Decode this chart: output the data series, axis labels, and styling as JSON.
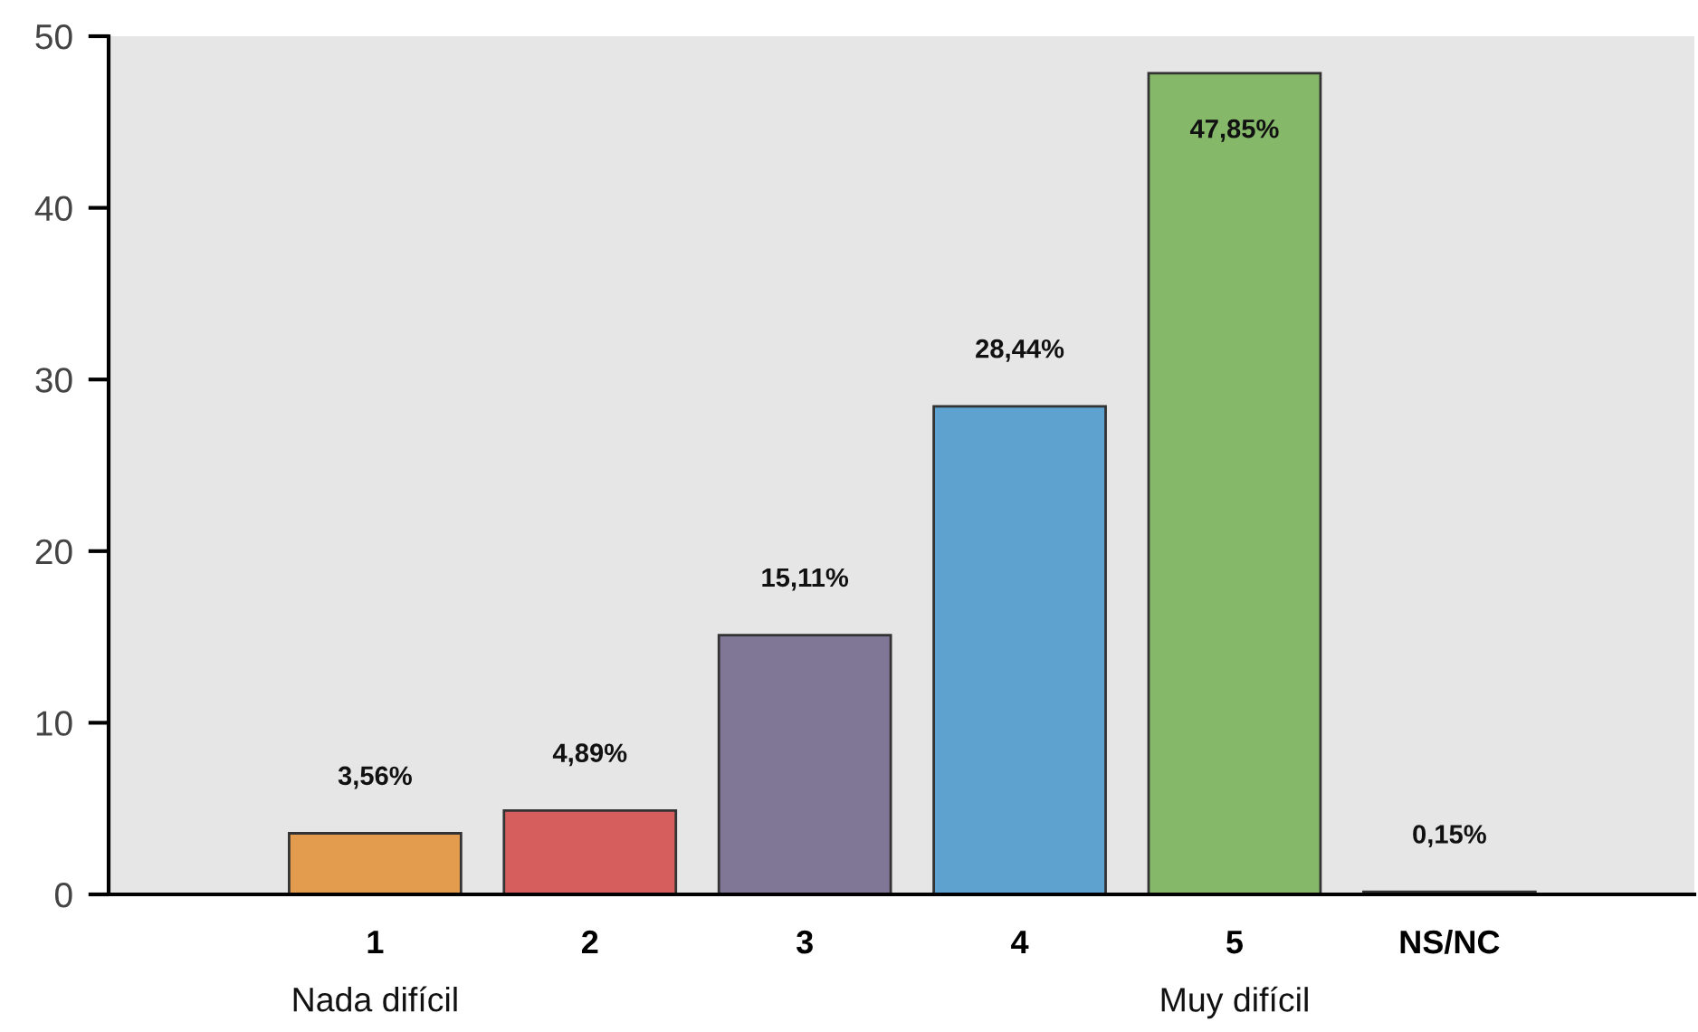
{
  "chart_data": {
    "type": "bar",
    "categories": [
      "1\nNada difícil",
      "2",
      "3",
      "4",
      "5\nMuy difícil",
      "NS/NC"
    ],
    "values": [
      3.56,
      4.89,
      15.11,
      28.44,
      47.85,
      0.15
    ],
    "colors": [
      "#e39c4e",
      "#d65f5d",
      "#807797",
      "#5ea3d0",
      "#86b86a",
      "#666666"
    ],
    "value_labels": [
      "3,56%",
      "4,89%",
      "15,11%",
      "28,44%",
      "47,85%",
      "0,15%"
    ],
    "ylim": [
      0,
      50
    ],
    "yticks": [
      0,
      10,
      20,
      30,
      40,
      50
    ]
  }
}
